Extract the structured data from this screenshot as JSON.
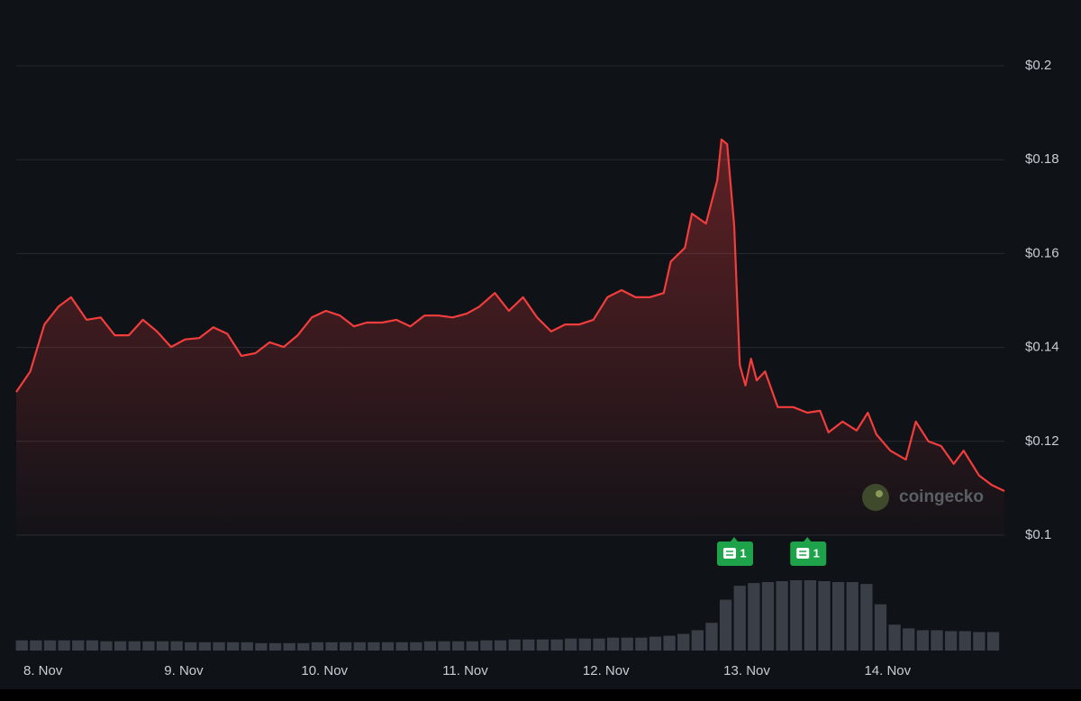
{
  "chart_data": {
    "type": "area",
    "color": "#f23d3d",
    "x": [
      -0.19,
      -0.09,
      0.01,
      0.11,
      0.2,
      0.31,
      0.41,
      0.51,
      0.61,
      0.71,
      0.81,
      0.91,
      1.01,
      1.11,
      1.21,
      1.31,
      1.41,
      1.51,
      1.61,
      1.71,
      1.81,
      1.91,
      2.01,
      2.11,
      2.21,
      2.3,
      2.41,
      2.51,
      2.61,
      2.71,
      2.81,
      2.91,
      3.01,
      3.1,
      3.21,
      3.31,
      3.41,
      3.51,
      3.61,
      3.71,
      3.81,
      3.91,
      4.01,
      4.11,
      4.21,
      4.31,
      4.41,
      4.46,
      4.56,
      4.61,
      4.71,
      4.79,
      4.82,
      4.86,
      4.91,
      4.95,
      4.99,
      5.03,
      5.07,
      5.13,
      5.22,
      5.33,
      5.43,
      5.52,
      5.58,
      5.68,
      5.78,
      5.86,
      5.92,
      6.02,
      6.13,
      6.2,
      6.29,
      6.38,
      6.47,
      6.54,
      6.65,
      6.74,
      6.83
    ],
    "values": [
      0.1305,
      0.1349,
      0.1449,
      0.1487,
      0.1507,
      0.1459,
      0.1464,
      0.1426,
      0.1426,
      0.1459,
      0.1434,
      0.1401,
      0.1417,
      0.142,
      0.1443,
      0.1429,
      0.1382,
      0.1388,
      0.1411,
      0.1401,
      0.1426,
      0.1464,
      0.1478,
      0.1468,
      0.1445,
      0.1453,
      0.1453,
      0.1459,
      0.1445,
      0.1468,
      0.1468,
      0.1464,
      0.1472,
      0.1487,
      0.1516,
      0.1478,
      0.1507,
      0.1464,
      0.1434,
      0.1449,
      0.1449,
      0.1459,
      0.1507,
      0.1522,
      0.1507,
      0.1507,
      0.1516,
      0.1583,
      0.1612,
      0.1685,
      0.1664,
      0.1756,
      0.1843,
      0.1833,
      0.166,
      0.1363,
      0.1319,
      0.1376,
      0.133,
      0.1349,
      0.1273,
      0.1273,
      0.1261,
      0.1265,
      0.1219,
      0.1242,
      0.1223,
      0.1261,
      0.1215,
      0.118,
      0.1161,
      0.1242,
      0.12,
      0.119,
      0.1152,
      0.118,
      0.1127,
      0.1107,
      0.1094
    ],
    "xlim": [
      -0.19,
      6.83
    ],
    "xticks": [
      {
        "value": 0,
        "label": "8. Nov"
      },
      {
        "value": 1,
        "label": "9. Nov"
      },
      {
        "value": 2,
        "label": "10. Nov"
      },
      {
        "value": 3,
        "label": "11. Nov"
      },
      {
        "value": 4,
        "label": "12. Nov"
      },
      {
        "value": 5,
        "label": "13. Nov"
      },
      {
        "value": 6,
        "label": "14. Nov"
      }
    ],
    "ylim": [
      0.1,
      0.2
    ],
    "yticks": [
      {
        "value": 0.1,
        "label": "$0.1"
      },
      {
        "value": 0.12,
        "label": "$0.12"
      },
      {
        "value": 0.14,
        "label": "$0.14"
      },
      {
        "value": 0.16,
        "label": "$0.16"
      },
      {
        "value": 0.18,
        "label": "$0.18"
      },
      {
        "value": 0.2,
        "label": "$0.2"
      }
    ],
    "grid": true,
    "volume": {
      "color": "#3a3f47",
      "x": [
        -0.15,
        -0.05,
        0.05,
        0.15,
        0.25,
        0.35,
        0.45,
        0.55,
        0.65,
        0.75,
        0.85,
        0.95,
        1.05,
        1.15,
        1.25,
        1.35,
        1.45,
        1.55,
        1.65,
        1.75,
        1.85,
        1.95,
        2.05,
        2.15,
        2.25,
        2.35,
        2.45,
        2.55,
        2.65,
        2.75,
        2.85,
        2.95,
        3.05,
        3.15,
        3.25,
        3.35,
        3.45,
        3.55,
        3.65,
        3.75,
        3.85,
        3.95,
        4.05,
        4.15,
        4.25,
        4.35,
        4.45,
        4.55,
        4.65,
        4.75,
        4.85,
        4.95,
        5.05,
        5.15,
        5.25,
        5.35,
        5.45,
        5.55,
        5.65,
        5.75,
        5.85,
        5.95,
        6.05,
        6.15,
        6.25,
        6.35,
        6.45,
        6.55,
        6.65,
        6.75
      ],
      "values": [
        11,
        11,
        11,
        11,
        11,
        11,
        10,
        10,
        10,
        10,
        10,
        10,
        9,
        9,
        9,
        9,
        9,
        8,
        8,
        8,
        8,
        9,
        9,
        9,
        9,
        9,
        9,
        9,
        9,
        10,
        10,
        10,
        10,
        11,
        11,
        12,
        12,
        12,
        12,
        13,
        13,
        13,
        14,
        14,
        14,
        15,
        16,
        18,
        22,
        30,
        55,
        70,
        73,
        74,
        75,
        76,
        76,
        75,
        74,
        74,
        72,
        50,
        28,
        24,
        22,
        22,
        21,
        21,
        20,
        20
      ]
    },
    "events": [
      {
        "x": 4.91,
        "label": "1"
      },
      {
        "x": 5.43,
        "label": "1"
      }
    ],
    "watermark": "coingecko"
  }
}
